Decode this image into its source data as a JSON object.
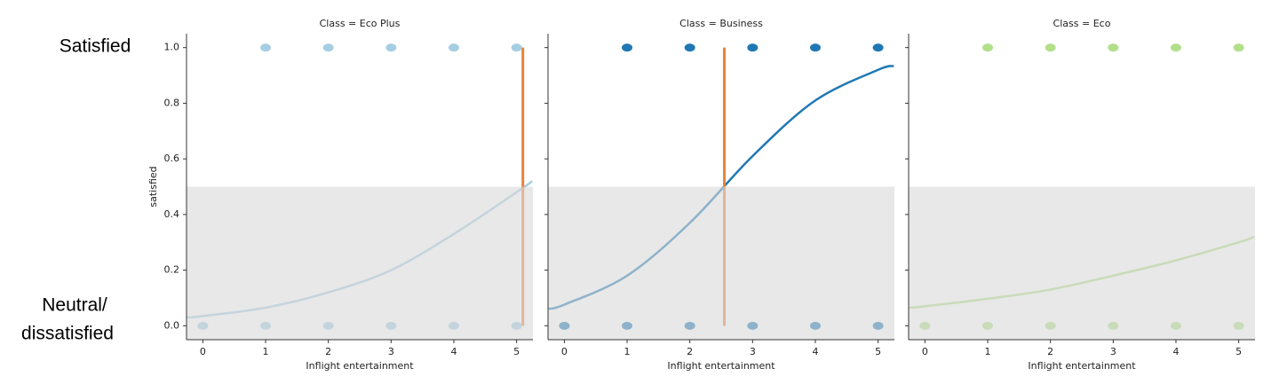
{
  "row_labels": {
    "top": "Satisfied",
    "bottom": [
      "Neutral/",
      "dissatisfied"
    ]
  },
  "chart_data": [
    {
      "type": "scatter",
      "title": "Class = Eco Plus",
      "xlabel": "Inflight entertainment",
      "ylabel": "satisfied",
      "color": "#a6cee3",
      "line_color": "#e8823a",
      "shade_color": "#d9d9d9",
      "points": {
        "x": [
          1,
          2,
          3,
          4,
          5,
          0,
          1,
          2,
          3,
          4,
          5
        ],
        "y": [
          1,
          1,
          1,
          1,
          1,
          0,
          0,
          0,
          0,
          0,
          0
        ]
      },
      "curve": {
        "x": [
          -0.25,
          0,
          1,
          2,
          3,
          4,
          5,
          5.25
        ],
        "y": [
          0.03,
          0.035,
          0.065,
          0.12,
          0.2,
          0.33,
          0.48,
          0.52
        ]
      },
      "threshold_y": 0.5,
      "threshold_x": 5.1,
      "xlim": [
        -0.26,
        5.26
      ],
      "ylim": [
        -0.05,
        1.05
      ],
      "xticks": [
        0,
        1,
        2,
        3,
        4,
        5
      ],
      "yticks": [
        {
          "value": 0,
          "label": "0.0"
        },
        {
          "value": 0.2,
          "label": "0.2"
        },
        {
          "value": 0.4,
          "label": "0.4"
        },
        {
          "value": 0.6,
          "label": "0.6"
        },
        {
          "value": 0.8,
          "label": "0.8"
        },
        {
          "value": 1,
          "label": "1.0"
        }
      ]
    },
    {
      "type": "scatter",
      "title": "Class = Business",
      "xlabel": "Inflight entertainment",
      "color": "#1f78b4",
      "line_color": "#e8823a",
      "shade_color": "#d9d9d9",
      "points": {
        "x": [
          1,
          2,
          3,
          4,
          5,
          0,
          1,
          2,
          3,
          4,
          5
        ],
        "y": [
          1,
          1,
          1,
          1,
          1,
          0,
          0,
          0,
          0,
          0,
          0
        ]
      },
      "curve": {
        "x": [
          -0.25,
          0,
          1,
          2,
          3,
          4,
          5,
          5.25
        ],
        "y": [
          0.061,
          0.076,
          0.18,
          0.37,
          0.61,
          0.81,
          0.92,
          0.934
        ]
      },
      "threshold_y": 0.5,
      "threshold_x": 2.55,
      "xlim": [
        -0.26,
        5.26
      ],
      "ylim": [
        -0.05,
        1.05
      ],
      "xticks": [
        0,
        1,
        2,
        3,
        4,
        5
      ],
      "yticks": [
        0,
        0.2,
        0.4,
        0.6,
        0.8,
        1
      ]
    },
    {
      "type": "scatter",
      "title": "Class = Eco",
      "xlabel": "Inflight entertainment",
      "color": "#b2df8a",
      "shade_color": "#d9d9d9",
      "points": {
        "x": [
          1,
          2,
          3,
          4,
          5,
          0,
          1,
          2,
          3,
          4,
          5
        ],
        "y": [
          1,
          1,
          1,
          1,
          1,
          0,
          0,
          0,
          0,
          0,
          0
        ]
      },
      "curve": {
        "x": [
          -0.25,
          0,
          1,
          2,
          3,
          4,
          5,
          5.25
        ],
        "y": [
          0.065,
          0.07,
          0.097,
          0.13,
          0.18,
          0.235,
          0.3,
          0.32
        ]
      },
      "threshold_y": 0.5,
      "xlim": [
        -0.26,
        5.26
      ],
      "ylim": [
        -0.05,
        1.05
      ],
      "xticks": [
        0,
        1,
        2,
        3,
        4,
        5
      ],
      "yticks": [
        0,
        0.2,
        0.4,
        0.6,
        0.8,
        1
      ]
    }
  ]
}
